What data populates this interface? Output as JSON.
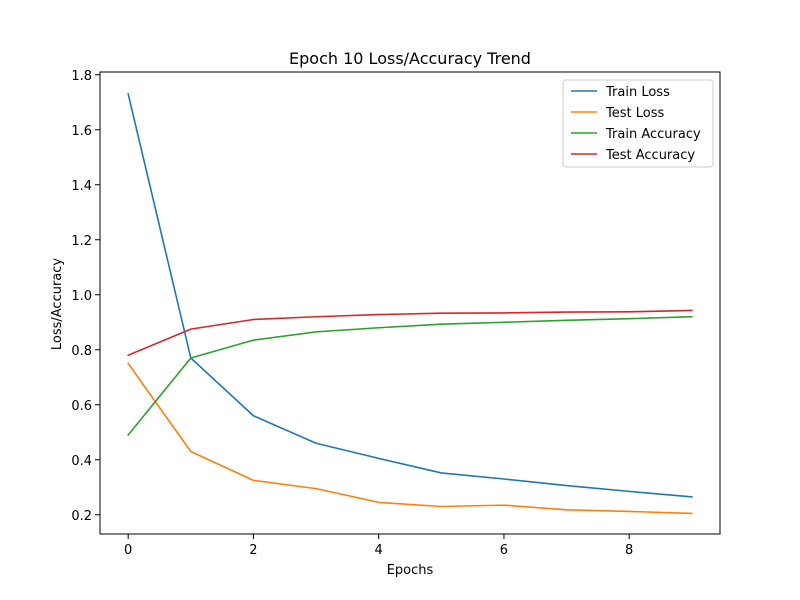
{
  "chart_data": {
    "type": "line",
    "title": "Epoch 10 Loss/Accuracy Trend",
    "xlabel": "Epochs",
    "ylabel": "Loss/Accuracy",
    "x": [
      0,
      1,
      2,
      3,
      4,
      5,
      6,
      7,
      8,
      9
    ],
    "xlim": [
      -0.45,
      9.45
    ],
    "ylim": [
      0.13,
      1.81
    ],
    "xticks": [
      0,
      2,
      4,
      6,
      8
    ],
    "yticks": [
      0.2,
      0.4,
      0.6,
      0.8,
      1.0,
      1.2,
      1.4,
      1.6,
      1.8
    ],
    "ytick_labels": [
      "0.2",
      "0.4",
      "0.6",
      "0.8",
      "1.0",
      "1.2",
      "1.4",
      "1.6",
      "1.8"
    ],
    "grid": false,
    "legend_position": "top-right",
    "series": [
      {
        "name": "Train Loss",
        "color": "#1f77b4",
        "values": [
          1.73,
          0.77,
          0.56,
          0.46,
          0.405,
          0.352,
          0.33,
          0.306,
          0.285,
          0.265
        ]
      },
      {
        "name": "Test Loss",
        "color": "#ff7f0e",
        "values": [
          0.75,
          0.43,
          0.325,
          0.295,
          0.245,
          0.23,
          0.235,
          0.218,
          0.212,
          0.205
        ]
      },
      {
        "name": "Train Accuracy",
        "color": "#2ca02c",
        "values": [
          0.49,
          0.77,
          0.835,
          0.865,
          0.88,
          0.893,
          0.9,
          0.907,
          0.913,
          0.92
        ]
      },
      {
        "name": "Test Accuracy",
        "color": "#d62728",
        "values": [
          0.78,
          0.875,
          0.91,
          0.92,
          0.928,
          0.933,
          0.934,
          0.937,
          0.938,
          0.943
        ]
      }
    ]
  }
}
